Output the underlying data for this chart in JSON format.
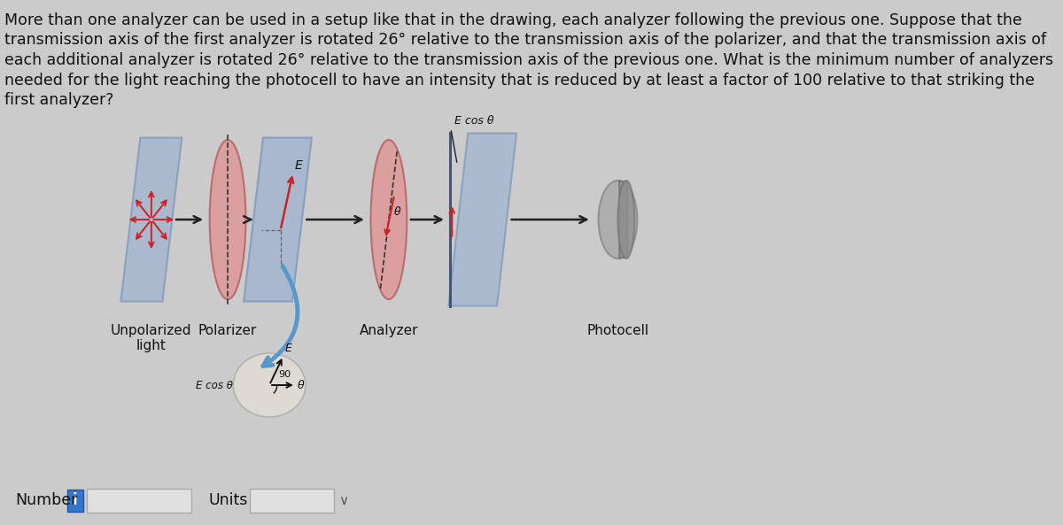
{
  "background_color": "#cbcbcb",
  "text_color": "#111111",
  "question_text": [
    "More than one analyzer can be used in a setup like that in the drawing, each analyzer following the previous one. Suppose that the",
    "transmission axis of the first analyzer is rotated 26° relative to the transmission axis of the polarizer, and that the transmission axis of",
    "each additional analyzer is rotated 26° relative to the transmission axis of the previous one. What is the minimum number of analyzers",
    "needed for the light reaching the photocell to have an intensity that is reduced by at least a factor of 100 relative to that striking the",
    "first analyzer?"
  ],
  "label_unpolarized": "Unpolarized",
  "label_light": "light",
  "label_polarizer": "Polarizer",
  "label_analyzer": "Analyzer",
  "label_photocell": "Photocell",
  "label_number": "Number",
  "label_units": "Units",
  "label_E": "E",
  "label_Ecos_theta": "E cos θ",
  "label_90": "90",
  "label_theta": "θ",
  "plate_blue_color": "#9ab0d0",
  "plate_blue_edge": "#7090b8",
  "polarizer_oval_color": "#e09898",
  "polarizer_oval_edge": "#b86060",
  "analyzer_oval_color": "#e09898",
  "analyzer_oval_edge": "#b86060",
  "photocell_color": "#a8a8a8",
  "photocell_edge": "#888888",
  "arrow_red": "#cc2222",
  "arrow_black": "#222222",
  "arrow_blue": "#5599cc",
  "figsize": [
    12.0,
    5.93
  ]
}
